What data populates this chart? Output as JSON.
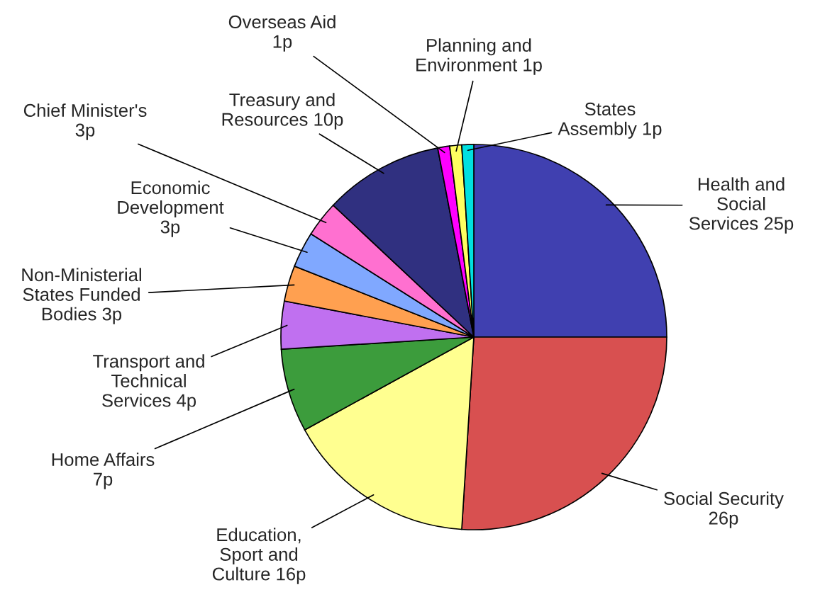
{
  "chart_data": {
    "type": "pie",
    "categories": [
      "Health and\nSocial\nServices 25p",
      "Social Security\n26p",
      "Education,\nSport and\nCulture 16p",
      "Home Affairs\n7p",
      "Transport and\nTechnical\nServices 4p",
      "Non-Ministerial\nStates Funded\nBodies 3p",
      "Economic\nDevelopment\n3p",
      "Chief Minister's\n3p",
      "Treasury and\nResources 10p",
      "Overseas Aid\n1p",
      "Planning and\nEnvironment 1p",
      "States\nAssembly 1p"
    ],
    "values": [
      25,
      26,
      16,
      7,
      4,
      3,
      3,
      3,
      10,
      1,
      1,
      1
    ],
    "colors": [
      "#4040b0",
      "#d85050",
      "#ffff90",
      "#3c9c3c",
      "#c070f0",
      "#ffa050",
      "#80a8ff",
      "#ff70d0",
      "#303080",
      "#ff00ff",
      "#ffff60",
      "#00e0e0"
    ]
  }
}
